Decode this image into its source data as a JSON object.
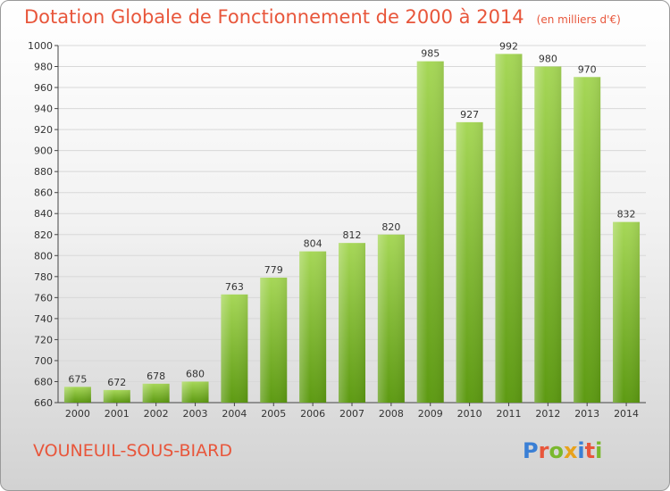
{
  "header": {
    "title": "Dotation Globale de Fonctionnement de 2000 à 2014",
    "unit": "(en milliers d'€)"
  },
  "footer": {
    "commune": "VOUNEUIL-SOUS-BIARD",
    "logo": {
      "letters": [
        "P",
        "r",
        "o",
        "x",
        "i",
        "t",
        "i"
      ],
      "colors": [
        "#3a7fd5",
        "#e8563b",
        "#7ab82d",
        "#e8a21b",
        "#3a7fd5",
        "#e8563b",
        "#7ab82d"
      ]
    }
  },
  "colors": {
    "accent": "#e8563b",
    "bar_light": "#a6d757",
    "bar_dark": "#5d9a12",
    "grid": "#d8d8d8"
  },
  "chart_data": {
    "type": "bar",
    "title": "Dotation Globale de Fonctionnement de 2000 à 2014",
    "categories": [
      "2000",
      "2001",
      "2002",
      "2003",
      "2004",
      "2005",
      "2006",
      "2007",
      "2008",
      "2009",
      "2010",
      "2011",
      "2012",
      "2013",
      "2014"
    ],
    "values": [
      675,
      672,
      678,
      680,
      763,
      779,
      804,
      812,
      820,
      985,
      927,
      992,
      980,
      970,
      832
    ],
    "ylim": [
      660,
      1000
    ],
    "yticks": [
      660,
      680,
      700,
      720,
      740,
      760,
      780,
      800,
      820,
      840,
      860,
      880,
      900,
      920,
      940,
      960,
      980,
      1000
    ],
    "grid": true,
    "xlabel": "",
    "ylabel": ""
  }
}
